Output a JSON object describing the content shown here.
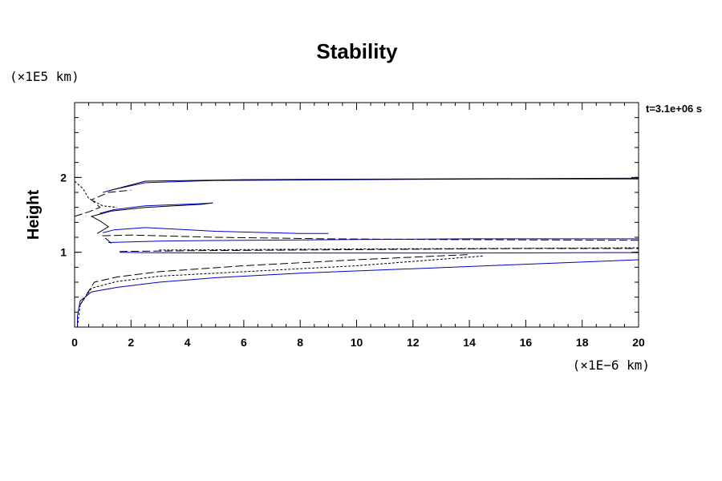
{
  "chart_data": {
    "type": "line",
    "title": "Stability",
    "ylabel": "Height",
    "xlabel": "",
    "y_unit_label": "(×1E5 km)",
    "x_unit_label": "(×1E−6 km)",
    "timestamp": "t=3.1e+06 s",
    "xlim": [
      0,
      20
    ],
    "ylim": [
      0,
      3
    ],
    "x_ticks": [
      0,
      2,
      4,
      6,
      8,
      10,
      12,
      14,
      16,
      18,
      20
    ],
    "y_ticks": [
      1,
      2
    ],
    "grid": false,
    "series": [
      {
        "color": "#0000cc",
        "dash": "solid",
        "points": [
          [
            0.1,
            0.0
          ],
          [
            0.1,
            0.15
          ],
          [
            0.2,
            0.35
          ],
          [
            0.6,
            0.47
          ],
          [
            1.5,
            0.53
          ],
          [
            3,
            0.6
          ],
          [
            5,
            0.66
          ],
          [
            8,
            0.72
          ],
          [
            12,
            0.78
          ],
          [
            16,
            0.84
          ],
          [
            20,
            0.9
          ]
        ]
      },
      {
        "color": "#000000",
        "dash": "dotted",
        "points": [
          [
            0.1,
            0.0
          ],
          [
            0.2,
            0.3
          ],
          [
            0.6,
            0.52
          ],
          [
            1.5,
            0.61
          ],
          [
            3,
            0.68
          ],
          [
            6,
            0.74
          ],
          [
            10,
            0.82
          ],
          [
            14.5,
            0.95
          ]
        ]
      },
      {
        "color": "#000000",
        "dash": "dashed",
        "points": [
          [
            0.2,
            0.3
          ],
          [
            0.7,
            0.6
          ],
          [
            1.5,
            0.67
          ],
          [
            3,
            0.74
          ],
          [
            6,
            0.82
          ],
          [
            10,
            0.9
          ],
          [
            14,
            0.97
          ]
        ]
      },
      {
        "color": "#0000cc",
        "dash": "solid",
        "points": [
          [
            1.6,
            1.0
          ],
          [
            2.5,
            0.995
          ],
          [
            5,
            0.99
          ],
          [
            9,
            0.99
          ],
          [
            14,
            0.99
          ],
          [
            20,
            0.995
          ]
        ]
      },
      {
        "color": "#000000",
        "dash": "dashed",
        "points": [
          [
            1.6,
            1.01
          ],
          [
            4,
            1.02
          ],
          [
            8,
            1.03
          ],
          [
            12,
            1.04
          ],
          [
            16,
            1.05
          ],
          [
            20,
            1.05
          ]
        ]
      },
      {
        "color": "#000000",
        "dash": "dotted",
        "points": [
          [
            3,
            1.03
          ],
          [
            8,
            1.04
          ],
          [
            14,
            1.05
          ],
          [
            20,
            1.06
          ]
        ]
      },
      {
        "color": "#0000cc",
        "dash": "solid",
        "points": [
          [
            1.2,
            1.13
          ],
          [
            3,
            1.15
          ],
          [
            6,
            1.16
          ],
          [
            10,
            1.17
          ],
          [
            14,
            1.18
          ],
          [
            20,
            1.18
          ]
        ]
      },
      {
        "color": "#000000",
        "dash": "dashed",
        "points": [
          [
            1.3,
            1.12
          ],
          [
            1.0,
            1.22
          ],
          [
            2,
            1.23
          ],
          [
            5,
            1.2
          ],
          [
            9,
            1.18
          ],
          [
            13,
            1.17
          ],
          [
            20,
            1.16
          ]
        ]
      },
      {
        "color": "#0000cc",
        "dash": "solid",
        "points": [
          [
            1.0,
            1.26
          ],
          [
            1.4,
            1.3
          ],
          [
            2.5,
            1.33
          ],
          [
            5,
            1.28
          ],
          [
            8,
            1.25
          ],
          [
            9,
            1.25
          ]
        ]
      },
      {
        "color": "#000000",
        "dash": "solid",
        "points": [
          [
            0.8,
            1.25
          ],
          [
            1.2,
            1.34
          ],
          [
            0.9,
            1.42
          ],
          [
            0.6,
            1.48
          ],
          [
            1.3,
            1.55
          ],
          [
            2.5,
            1.6
          ],
          [
            4.5,
            1.64
          ],
          [
            4.9,
            1.66
          ]
        ]
      },
      {
        "color": "#0000cc",
        "dash": "solid",
        "points": [
          [
            0.9,
            1.52
          ],
          [
            1.4,
            1.57
          ],
          [
            2.5,
            1.62
          ],
          [
            4.5,
            1.65
          ],
          [
            4.9,
            1.66
          ]
        ]
      },
      {
        "color": "#000000",
        "dash": "dashed",
        "points": [
          [
            0.0,
            1.48
          ],
          [
            0.5,
            1.54
          ],
          [
            0.9,
            1.6
          ],
          [
            0.6,
            1.7
          ],
          [
            1.2,
            1.8
          ],
          [
            2.0,
            1.83
          ]
        ]
      },
      {
        "color": "#000000",
        "dash": "dotted",
        "points": [
          [
            0.0,
            1.95
          ],
          [
            0.3,
            1.85
          ],
          [
            0.5,
            1.72
          ],
          [
            1.0,
            1.62
          ],
          [
            1.5,
            1.6
          ]
        ]
      },
      {
        "color": "#0000cc",
        "dash": "solid",
        "points": [
          [
            1.0,
            1.8
          ],
          [
            1.4,
            1.84
          ],
          [
            2.5,
            1.93
          ],
          [
            5,
            1.96
          ],
          [
            10,
            1.97
          ],
          [
            15,
            1.98
          ],
          [
            20,
            1.98
          ]
        ]
      },
      {
        "color": "#000000",
        "dash": "solid",
        "points": [
          [
            1.2,
            1.82
          ],
          [
            2.5,
            1.95
          ],
          [
            6,
            1.97
          ],
          [
            12,
            1.98
          ],
          [
            20,
            1.99
          ]
        ]
      }
    ]
  }
}
